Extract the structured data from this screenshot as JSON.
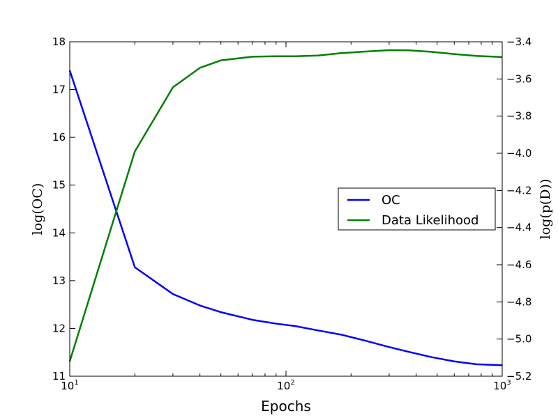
{
  "chart_data": {
    "type": "line",
    "xlabel": "Epochs",
    "x_scale": "log",
    "xlim": [
      10,
      1000
    ],
    "x_ticks": [
      {
        "value": 10,
        "base": "10",
        "exp": "1"
      },
      {
        "value": 100,
        "base": "10",
        "exp": "2"
      },
      {
        "value": 1000,
        "base": "10",
        "exp": "3"
      }
    ],
    "y_left": {
      "label": "log(OC)",
      "lim": [
        11,
        18
      ],
      "ticks": [
        "11",
        "12",
        "13",
        "14",
        "15",
        "16",
        "17",
        "18"
      ]
    },
    "y_right": {
      "label": "log(p(D))",
      "lim": [
        -5.2,
        -3.4
      ],
      "ticks": [
        "-5.2",
        "-5.0",
        "-4.8",
        "-4.6",
        "-4.4",
        "-4.2",
        "-4.0",
        "-3.8",
        "-3.6",
        "-3.4"
      ]
    },
    "legend": {
      "placement": "center-right"
    },
    "series": [
      {
        "name": "OC",
        "axis": "left",
        "color": "#0000ff",
        "x": [
          10,
          20,
          30,
          40,
          50,
          70,
          90,
          110,
          140,
          180,
          230,
          300,
          370,
          470,
          600,
          760,
          1000
        ],
        "y": [
          17.4,
          13.28,
          12.72,
          12.48,
          12.34,
          12.18,
          12.1,
          12.05,
          11.96,
          11.87,
          11.75,
          11.61,
          11.51,
          11.4,
          11.31,
          11.25,
          11.23
        ]
      },
      {
        "name": "Data Likelihood",
        "axis": "right",
        "color": "#008000",
        "x": [
          10,
          20,
          30,
          40,
          50,
          70,
          90,
          110,
          140,
          180,
          230,
          300,
          370,
          470,
          600,
          760,
          1000
        ],
        "y": [
          -5.12,
          -3.99,
          -3.645,
          -3.54,
          -3.5,
          -3.48,
          -3.478,
          -3.478,
          -3.474,
          -3.461,
          -3.453,
          -3.445,
          -3.446,
          -3.454,
          -3.466,
          -3.476,
          -3.482
        ]
      }
    ]
  }
}
